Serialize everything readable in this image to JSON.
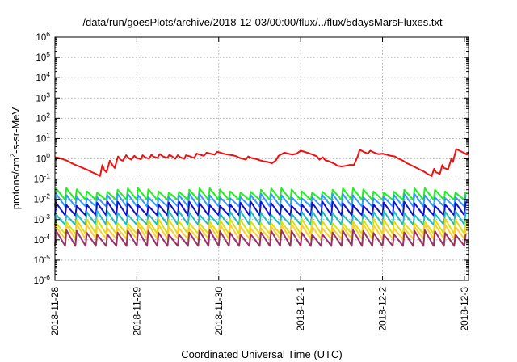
{
  "chart_data": {
    "type": "line",
    "title": "/data/run/goesPlots/archive/2018-12-03/00:00/flux/../flux/5daysMarsFluxes.txt",
    "xlabel": "Coordinated Universal Time (UTC)",
    "ylabel_base": "protons/cm",
    "ylabel_sup": "2",
    "ylabel_rest": "-s-sr-MeV",
    "yscale": "log",
    "ylim_exp": [
      -6,
      6
    ],
    "ytick_exponents": [
      -6,
      -5,
      -4,
      -3,
      -2,
      -1,
      0,
      1,
      2,
      3,
      4,
      5,
      6
    ],
    "ytick_base": "10",
    "xlim_days": [
      0,
      5.05
    ],
    "xticks": [
      "2018-11-28",
      "2018-11-29",
      "2018-11-30",
      "2018-12-1",
      "2018-12-2",
      "2018-12-3"
    ],
    "grid": true,
    "legend": "none",
    "series": [
      {
        "color": "#ee1111",
        "points": [
          [
            0,
            1.2
          ],
          [
            0.05,
            1.1
          ],
          [
            0.1,
            0.95
          ],
          [
            0.15,
            0.8
          ],
          [
            0.2,
            0.62
          ],
          [
            0.25,
            0.5
          ],
          [
            0.3,
            0.42
          ],
          [
            0.35,
            0.34
          ],
          [
            0.4,
            0.28
          ],
          [
            0.45,
            0.22
          ],
          [
            0.5,
            0.18
          ],
          [
            0.55,
            0.14
          ],
          [
            0.58,
            0.5
          ],
          [
            0.6,
            0.28
          ],
          [
            0.63,
            0.22
          ],
          [
            0.67,
            0.8
          ],
          [
            0.7,
            0.5
          ],
          [
            0.73,
            0.35
          ],
          [
            0.77,
            1.3
          ],
          [
            0.8,
            0.9
          ],
          [
            0.83,
            0.8
          ],
          [
            0.87,
            1.5
          ],
          [
            0.9,
            1.1
          ],
          [
            0.93,
            0.9
          ],
          [
            0.97,
            1.4
          ],
          [
            1.0,
            1.1
          ],
          [
            1.05,
            0.95
          ],
          [
            1.07,
            1.5
          ],
          [
            1.1,
            1.2
          ],
          [
            1.15,
            1.0
          ],
          [
            1.18,
            1.6
          ],
          [
            1.2,
            1.3
          ],
          [
            1.25,
            1.1
          ],
          [
            1.28,
            1.7
          ],
          [
            1.32,
            1.3
          ],
          [
            1.37,
            1.1
          ],
          [
            1.4,
            1.6
          ],
          [
            1.43,
            1.3
          ],
          [
            1.47,
            1.0
          ],
          [
            1.5,
            1.5
          ],
          [
            1.53,
            1.2
          ],
          [
            1.58,
            1.0
          ],
          [
            1.6,
            1.5
          ],
          [
            1.65,
            1.3
          ],
          [
            1.7,
            1.1
          ],
          [
            1.73,
            1.8
          ],
          [
            1.77,
            1.6
          ],
          [
            1.82,
            1.4
          ],
          [
            1.85,
            2.0
          ],
          [
            1.9,
            1.8
          ],
          [
            1.95,
            1.6
          ],
          [
            1.98,
            2.2
          ],
          [
            2.02,
            2.0
          ],
          [
            2.08,
            1.7
          ],
          [
            2.12,
            1.6
          ],
          [
            2.17,
            1.5
          ],
          [
            2.22,
            1.3
          ],
          [
            2.26,
            1.1
          ],
          [
            2.3,
            1.0
          ],
          [
            2.33,
            0.9
          ],
          [
            2.36,
            1.3
          ],
          [
            2.4,
            1.1
          ],
          [
            2.45,
            1.0
          ],
          [
            2.5,
            0.85
          ],
          [
            2.55,
            0.75
          ],
          [
            2.6,
            0.7
          ],
          [
            2.65,
            0.6
          ],
          [
            2.7,
            0.85
          ],
          [
            2.73,
            1.4
          ],
          [
            2.77,
            1.7
          ],
          [
            2.8,
            2.0
          ],
          [
            2.85,
            1.8
          ],
          [
            2.9,
            1.6
          ],
          [
            2.95,
            1.8
          ],
          [
            3.0,
            2.5
          ],
          [
            3.05,
            2.2
          ],
          [
            3.1,
            1.9
          ],
          [
            3.15,
            1.6
          ],
          [
            3.2,
            1.3
          ],
          [
            3.23,
            0.9
          ],
          [
            3.27,
            1.2
          ],
          [
            3.3,
            0.85
          ],
          [
            3.35,
            0.75
          ],
          [
            3.38,
            0.65
          ],
          [
            3.42,
            0.55
          ],
          [
            3.45,
            0.45
          ],
          [
            3.5,
            0.42
          ],
          [
            3.55,
            0.45
          ],
          [
            3.6,
            0.5
          ],
          [
            3.65,
            0.5
          ],
          [
            3.7,
            1.4
          ],
          [
            3.72,
            2.8
          ],
          [
            3.77,
            2.2
          ],
          [
            3.82,
            1.8
          ],
          [
            3.85,
            2.5
          ],
          [
            3.9,
            2.0
          ],
          [
            3.95,
            1.7
          ],
          [
            4.0,
            1.8
          ],
          [
            4.05,
            1.6
          ],
          [
            4.1,
            1.4
          ],
          [
            4.15,
            1.3
          ],
          [
            4.2,
            1.0
          ],
          [
            4.25,
            0.8
          ],
          [
            4.3,
            0.6
          ],
          [
            4.35,
            0.48
          ],
          [
            4.4,
            0.38
          ],
          [
            4.45,
            0.3
          ],
          [
            4.5,
            0.24
          ],
          [
            4.55,
            0.18
          ],
          [
            4.6,
            0.14
          ],
          [
            4.63,
            0.32
          ],
          [
            4.65,
            0.22
          ],
          [
            4.7,
            0.18
          ],
          [
            4.73,
            0.5
          ],
          [
            4.75,
            0.35
          ],
          [
            4.8,
            0.3
          ],
          [
            4.84,
            1.0
          ],
          [
            4.86,
            0.7
          ],
          [
            4.9,
            3.0
          ],
          [
            4.95,
            2.4
          ],
          [
            5.0,
            1.9
          ],
          [
            5.03,
            1.6
          ],
          [
            5.05,
            2.2
          ]
        ]
      },
      {
        "color": "#22ee22",
        "base": 0.018,
        "amp": 1.6,
        "min": 0.006
      },
      {
        "color": "#3399ff",
        "base": 0.009,
        "amp": 1.7,
        "min": 0.0025
      },
      {
        "color": "#1111cc",
        "base": 0.0035,
        "amp": 1.8,
        "min": 0.0009
      },
      {
        "color": "#22bbbb",
        "base": 0.0012,
        "amp": 1.8,
        "min": 0.0003
      },
      {
        "color": "#dddd11",
        "base": 0.00045,
        "amp": 1.9,
        "min": 0.0001
      },
      {
        "color": "#ffcc33",
        "base": 0.00025,
        "amp": 1.9,
        "min": 6e-05
      },
      {
        "color": "#993366",
        "base": 0.00012,
        "amp": 2.0,
        "min": 1.5e-05
      }
    ],
    "sawtooth": {
      "period_days": 0.125,
      "rise_fraction": 0.12
    }
  }
}
